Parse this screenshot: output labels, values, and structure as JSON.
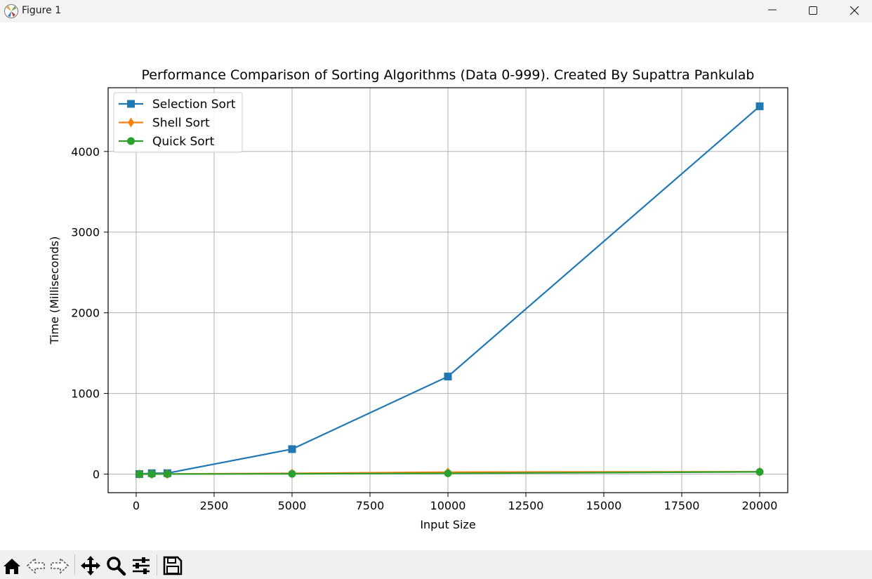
{
  "window": {
    "title": "Figure 1",
    "controls": [
      "minimize-icon",
      "maximize-icon",
      "close-icon"
    ]
  },
  "toolbar": {
    "tools": [
      "home-icon",
      "back-arrow-icon",
      "forward-arrow-icon",
      "pan-icon",
      "zoom-icon",
      "configure-subplots-icon",
      "save-icon"
    ]
  },
  "chart_data": {
    "type": "line",
    "title": "Performance Comparison of Sorting Algorithms (Data 0-999). Created By Supattra Pankulab",
    "xlabel": "Input Size",
    "ylabel": "Time (Milliseconds)",
    "x": [
      100,
      500,
      1000,
      5000,
      10000,
      20000
    ],
    "xlim": [
      -900,
      20900
    ],
    "ylim": [
      -230,
      4790
    ],
    "xticks": [
      0,
      2500,
      5000,
      7500,
      10000,
      12500,
      15000,
      17500,
      20000
    ],
    "xtick_labels": [
      "0",
      "2500",
      "5000",
      "7500",
      "10000",
      "12500",
      "15000",
      "17500",
      "20000"
    ],
    "yticks": [
      0,
      1000,
      2000,
      3000,
      4000
    ],
    "ytick_labels": [
      "0",
      "1000",
      "2000",
      "3000",
      "4000"
    ],
    "grid": true,
    "legend_position": "upper-left",
    "series": [
      {
        "name": "Selection Sort",
        "color": "#1f77b4",
        "marker": "square",
        "values": [
          1,
          12,
          12,
          310,
          1210,
          4560
        ]
      },
      {
        "name": "Shell Sort",
        "color": "#ff7f0e",
        "marker": "diamond",
        "values": [
          0.2,
          1,
          2,
          10,
          25,
          30
        ]
      },
      {
        "name": "Quick Sort",
        "color": "#2ca02c",
        "marker": "circle",
        "values": [
          0.1,
          0.5,
          1,
          4,
          10,
          28
        ]
      }
    ]
  }
}
